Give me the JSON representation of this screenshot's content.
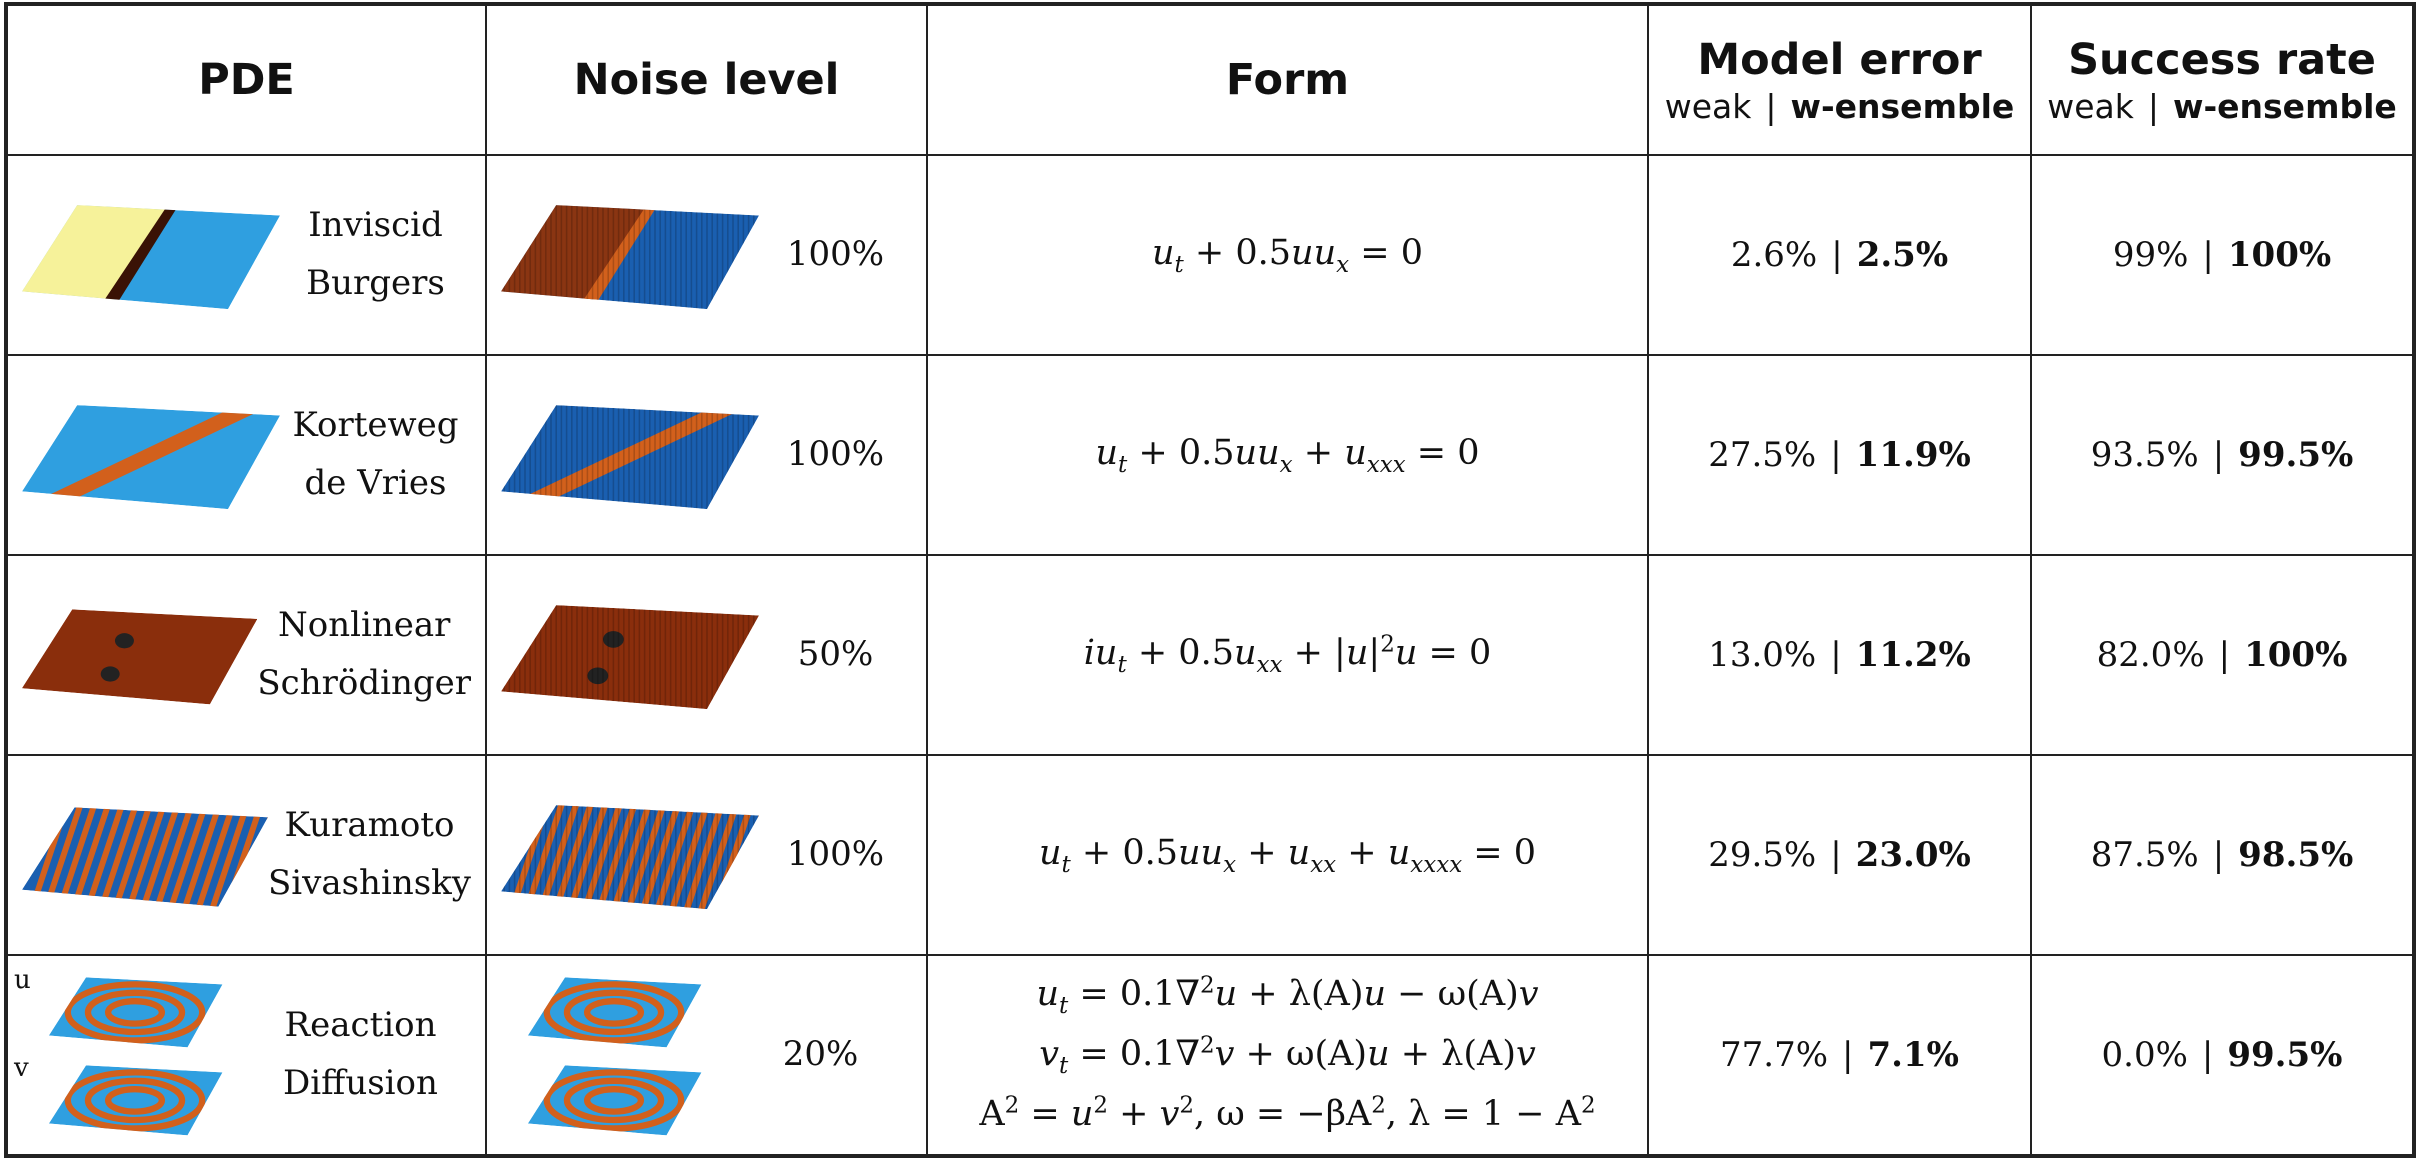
{
  "header": {
    "columns": [
      {
        "title": "PDE"
      },
      {
        "title": "Noise level"
      },
      {
        "title": "Form"
      },
      {
        "title": "Model error",
        "sub": [
          "weak",
          "w-ensemble"
        ]
      },
      {
        "title": "Success rate",
        "sub": [
          "weak",
          "w-ensemble"
        ]
      }
    ]
  },
  "rows": [
    {
      "name": [
        "Inviscid",
        "Burgers"
      ],
      "noise": "100%",
      "form": [
        [
          "u",
          {
            "sub": "t"
          },
          " + 0.5uu",
          {
            "sub": "x"
          },
          " = 0"
        ]
      ],
      "model_error": [
        "2.6%",
        "2.5%"
      ],
      "success_rate": [
        "99%",
        "100%"
      ]
    },
    {
      "name": [
        "Korteweg",
        "de Vries"
      ],
      "noise": "100%",
      "form": [
        [
          "u",
          {
            "sub": "t"
          },
          " + 0.5uu",
          {
            "sub": "x"
          },
          " + u",
          {
            "sub": "xxx"
          },
          " = 0"
        ]
      ],
      "model_error": [
        "27.5%",
        "11.9%"
      ],
      "success_rate": [
        "93.5%",
        "99.5%"
      ]
    },
    {
      "name": [
        "Nonlinear",
        "Schrödinger"
      ],
      "noise": "50%",
      "form": [
        [
          "iu",
          {
            "sub": "t"
          },
          " + 0.5u",
          {
            "sub": "xx"
          },
          " + |u|",
          {
            "sup": "2"
          },
          "u = 0"
        ]
      ],
      "model_error": [
        "13.0%",
        "11.2%"
      ],
      "success_rate": [
        "82.0%",
        "100%"
      ]
    },
    {
      "name": [
        "Kuramoto",
        "Sivashinsky"
      ],
      "noise": "100%",
      "form": [
        [
          "u",
          {
            "sub": "t"
          },
          " + 0.5uu",
          {
            "sub": "x"
          },
          " + u",
          {
            "sub": "xx"
          },
          " + u",
          {
            "sub": "xxxx"
          },
          " = 0"
        ]
      ],
      "model_error": [
        "29.5%",
        "23.0%"
      ],
      "success_rate": [
        "87.5%",
        "98.5%"
      ]
    },
    {
      "name": [
        "Reaction",
        "Diffusion"
      ],
      "panel_labels": [
        "u",
        "v"
      ],
      "noise": "20%",
      "form": [
        [
          "u",
          {
            "sub": "t"
          },
          " = 0.1∇",
          {
            "sup": "2"
          },
          "u + λ(A)u − ω(A)v"
        ],
        [
          "v",
          {
            "sub": "t"
          },
          " = 0.1∇",
          {
            "sup": "2"
          },
          "v + ω(A)u + λ(A)v"
        ],
        [
          "A",
          {
            "sup": "2"
          },
          " = u",
          {
            "sup": "2"
          },
          " + v",
          {
            "sup": "2"
          },
          ", ω = −βA",
          {
            "sup": "2"
          },
          ", λ = 1 − A",
          {
            "sup": "2"
          }
        ]
      ],
      "model_error": [
        "77.7%",
        "7.1%"
      ],
      "success_rate": [
        "0.0%",
        "99.5%"
      ]
    }
  ]
}
